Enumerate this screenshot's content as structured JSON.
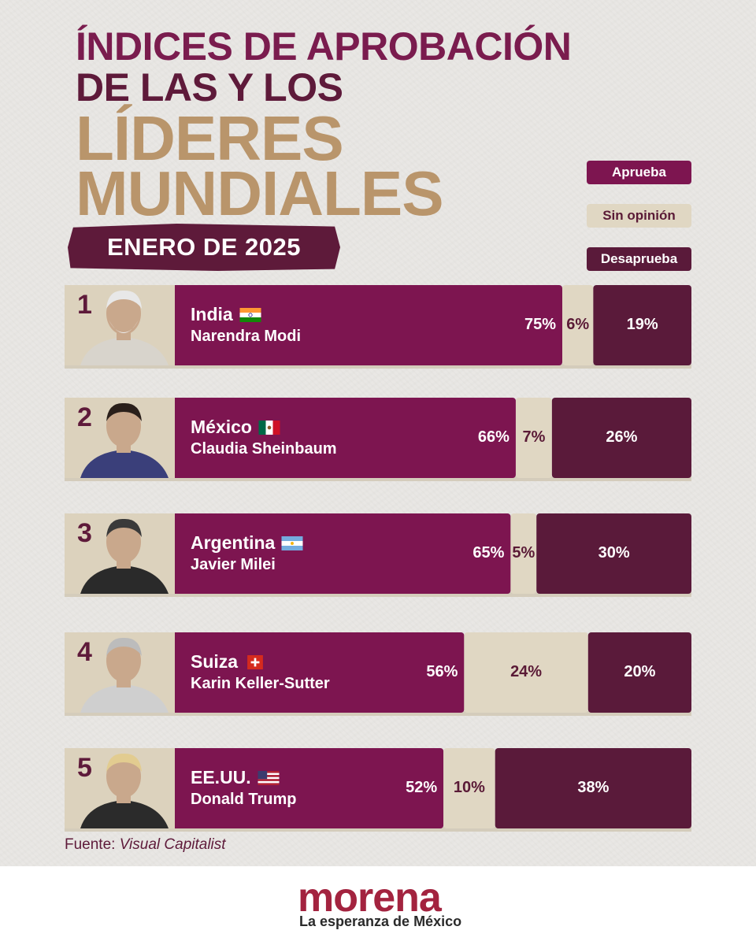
{
  "title": {
    "line1": "ÍNDICES DE APROBACIÓN",
    "line2": "DE LAS Y LOS",
    "line3": "LÍDERES",
    "line4": "MUNDIALES",
    "date": "ENERO DE 2025"
  },
  "legend": {
    "approve": "Aprueba",
    "neutral": "Sin opinión",
    "disapprove": "Desaprueba"
  },
  "colors": {
    "approve": "#7d1550",
    "neutral": "#e0d7c3",
    "disapprove": "#5a1a3a",
    "title_primary": "#7a1c4e",
    "title_gold": "#b9956b",
    "brand": "#a3233f"
  },
  "chart_data": {
    "type": "bar",
    "stacked": true,
    "orientation": "horizontal",
    "categories": [
      "Narendra Modi",
      "Claudia Sheinbaum",
      "Javier Milei",
      "Karin Keller-Sutter",
      "Donald Trump"
    ],
    "series": [
      {
        "name": "Aprueba",
        "values": [
          75,
          66,
          65,
          56,
          52
        ]
      },
      {
        "name": "Sin opinión",
        "values": [
          6,
          7,
          5,
          24,
          10
        ]
      },
      {
        "name": "Desaprueba",
        "values": [
          19,
          26,
          30,
          20,
          38
        ]
      }
    ],
    "rows": [
      {
        "rank": "1",
        "country": "India",
        "leader": "Narendra Modi",
        "flag_icon": "india-flag-icon",
        "approve_label": "75%",
        "neutral_label": "6%",
        "disapprove_label": "19%"
      },
      {
        "rank": "2",
        "country": "México",
        "leader": "Claudia Sheinbaum",
        "flag_icon": "mexico-flag-icon",
        "approve_label": "66%",
        "neutral_label": "7%",
        "disapprove_label": "26%"
      },
      {
        "rank": "3",
        "country": "Argentina",
        "leader": "Javier Milei",
        "flag_icon": "argentina-flag-icon",
        "approve_label": "65%",
        "neutral_label": "5%",
        "disapprove_label": "30%"
      },
      {
        "rank": "4",
        "country": "Suiza",
        "leader": "Karin Keller-Sutter",
        "flag_icon": "switzerland-flag-icon",
        "approve_label": "56%",
        "neutral_label": "24%",
        "disapprove_label": "20%"
      },
      {
        "rank": "5",
        "country": "EE.UU.",
        "leader": "Donald Trump",
        "flag_icon": "usa-flag-icon",
        "approve_label": "52%",
        "neutral_label": "10%",
        "disapprove_label": "38%"
      }
    ]
  },
  "source": {
    "prefix": "Fuente:",
    "name": "Visual Capitalist"
  },
  "footer": {
    "brand": "morena",
    "tagline": "La esperanza de México"
  }
}
